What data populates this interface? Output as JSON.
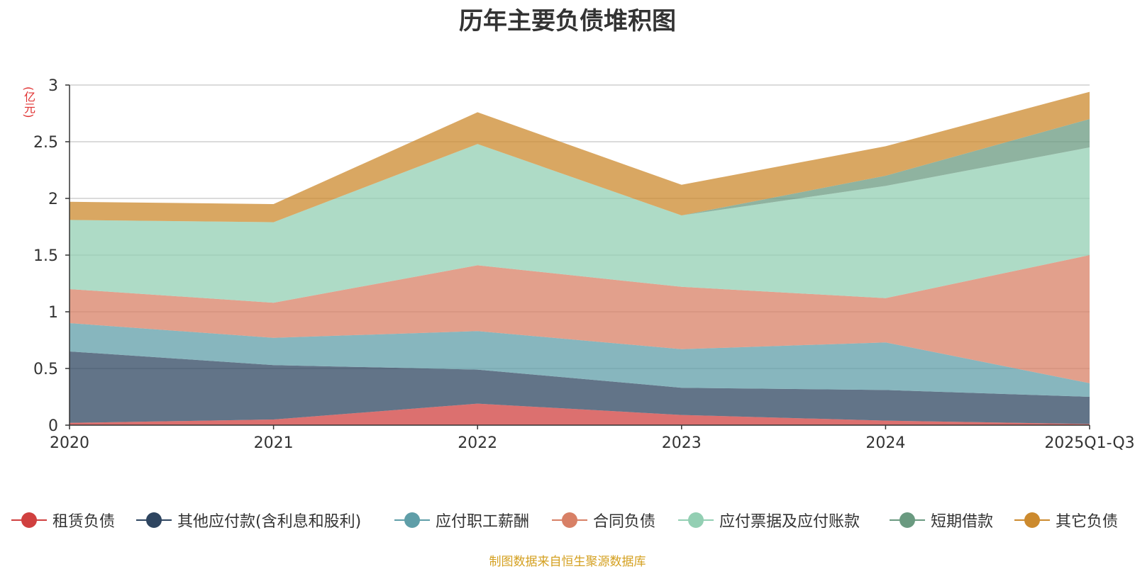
{
  "chart_data": {
    "type": "area",
    "stacked": true,
    "title": "历年主要负债堆积图",
    "ylabel": "(亿元)",
    "xlabel": "",
    "categories": [
      "2020",
      "2021",
      "2022",
      "2023",
      "2024",
      "2025Q1-Q3"
    ],
    "ylim": [
      0,
      3
    ],
    "yticks": [
      "0",
      "0.5",
      "1",
      "1.5",
      "2",
      "2.5",
      "3"
    ],
    "ytick_values": [
      0,
      0.5,
      1,
      1.5,
      2,
      2.5,
      3
    ],
    "grid": true,
    "legend_position": "bottom",
    "series": [
      {
        "name": "租赁负债",
        "color": "#d0403f",
        "values": [
          0.02,
          0.05,
          0.19,
          0.09,
          0.04,
          0.01
        ]
      },
      {
        "name": "其他应付款(含利息和股利)",
        "color": "#2e4560",
        "values": [
          0.63,
          0.48,
          0.3,
          0.24,
          0.27,
          0.24
        ]
      },
      {
        "name": "应付职工薪酬",
        "color": "#5f9ea8",
        "values": [
          0.25,
          0.24,
          0.34,
          0.34,
          0.42,
          0.12
        ]
      },
      {
        "name": "合同负债",
        "color": "#d88066",
        "values": [
          0.3,
          0.31,
          0.58,
          0.55,
          0.39,
          1.13
        ]
      },
      {
        "name": "应付票据及应付账款",
        "color": "#93cfb3",
        "values": [
          0.61,
          0.71,
          1.07,
          0.63,
          0.99,
          0.95
        ]
      },
      {
        "name": "短期借款",
        "color": "#6a9a80",
        "values": [
          0,
          0,
          0,
          0,
          0.09,
          0.25
        ]
      },
      {
        "name": "其它负债",
        "color": "#cc8a2e",
        "values": [
          0.16,
          0.16,
          0.28,
          0.27,
          0.26,
          0.24
        ]
      }
    ]
  },
  "footer": "制图数据来自恒生聚源数据库"
}
